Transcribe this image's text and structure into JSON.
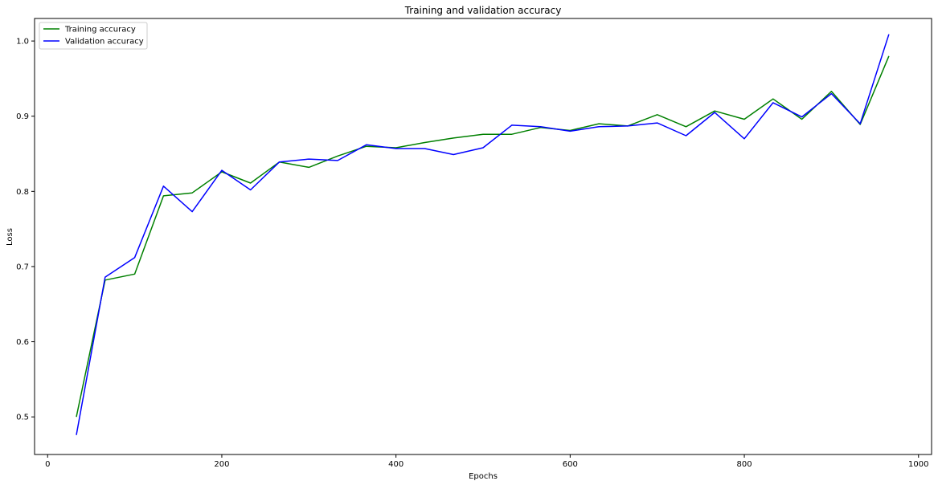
{
  "chart_data": {
    "type": "line",
    "title": "Training and validation accuracy",
    "xlabel": "Epochs",
    "ylabel": "Loss",
    "xlim": [
      -15,
      1015
    ],
    "ylim": [
      0.45,
      1.03
    ],
    "xticks": [
      0,
      200,
      400,
      600,
      800,
      1000
    ],
    "yticks": [
      0.5,
      0.6,
      0.7,
      0.8,
      0.9,
      1.0
    ],
    "xtick_labels": [
      "0",
      "200",
      "400",
      "600",
      "800",
      "1000"
    ],
    "ytick_labels": [
      "0.5",
      "0.6",
      "0.7",
      "0.8",
      "0.9",
      "1.0"
    ],
    "grid": false,
    "legend_position": "upper-left",
    "x": [
      33,
      66,
      100,
      133,
      166,
      200,
      233,
      266,
      300,
      333,
      366,
      400,
      433,
      466,
      500,
      533,
      566,
      600,
      633,
      666,
      700,
      733,
      766,
      800,
      833,
      866,
      900,
      933,
      966
    ],
    "series": [
      {
        "name": "Training accuracy",
        "color": "#008000",
        "values": [
          0.5,
          0.682,
          0.69,
          0.794,
          0.798,
          0.826,
          0.811,
          0.839,
          0.832,
          0.847,
          0.86,
          0.858,
          0.865,
          0.871,
          0.876,
          0.876,
          0.885,
          0.881,
          0.89,
          0.887,
          0.902,
          0.886,
          0.907,
          0.896,
          0.923,
          0.896,
          0.933,
          0.889,
          0.98
        ]
      },
      {
        "name": "Validation accuracy",
        "color": "#0000ff",
        "values": [
          0.476,
          0.686,
          0.712,
          0.807,
          0.773,
          0.828,
          0.802,
          0.839,
          0.843,
          0.841,
          0.862,
          0.857,
          0.857,
          0.849,
          0.858,
          0.888,
          0.886,
          0.88,
          0.886,
          0.887,
          0.891,
          0.874,
          0.905,
          0.87,
          0.918,
          0.899,
          0.93,
          0.89,
          1.009
        ]
      }
    ]
  }
}
